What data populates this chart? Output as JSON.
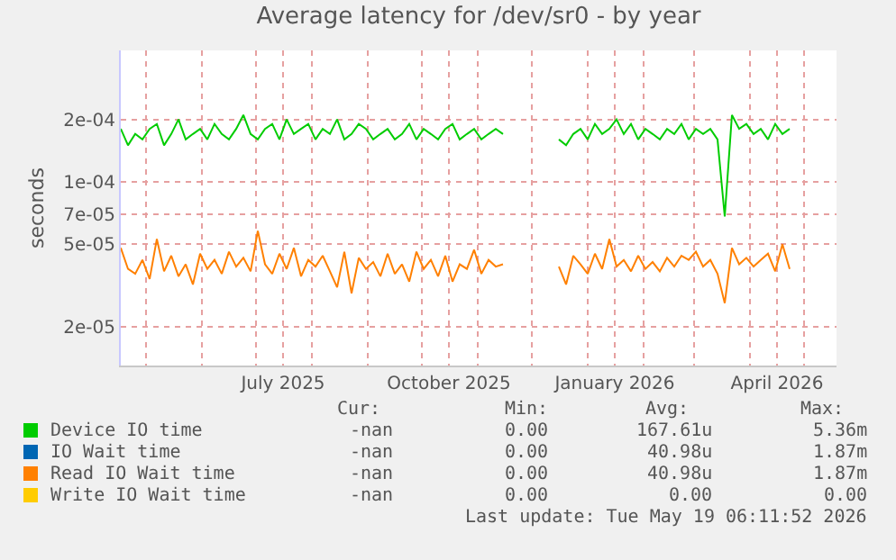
{
  "chart_data": {
    "type": "line",
    "title": "Average latency for /dev/sr0 - by year",
    "ylabel": "seconds",
    "x": [
      "2025-04-17",
      "2025-04-21",
      "2025-04-25",
      "2025-04-29",
      "2025-05-03",
      "2025-05-07",
      "2025-05-11",
      "2025-05-15",
      "2025-05-19",
      "2025-05-23",
      "2025-05-27",
      "2025-05-31",
      "2025-06-04",
      "2025-06-08",
      "2025-06-12",
      "2025-06-16",
      "2025-06-20",
      "2025-06-24",
      "2025-06-28",
      "2025-07-02",
      "2025-07-06",
      "2025-07-10",
      "2025-07-14",
      "2025-07-18",
      "2025-07-22",
      "2025-07-26",
      "2025-07-30",
      "2025-08-03",
      "2025-08-07",
      "2025-08-11",
      "2025-08-15",
      "2025-08-19",
      "2025-08-23",
      "2025-08-27",
      "2025-08-31",
      "2025-09-04",
      "2025-09-08",
      "2025-09-12",
      "2025-09-16",
      "2025-09-20",
      "2025-09-24",
      "2025-09-28",
      "2025-10-02",
      "2025-10-06",
      "2025-10-10",
      "2025-10-14",
      "2025-10-18",
      "2025-10-22",
      "2025-10-26",
      "2025-10-30",
      "2025-11-03",
      "2025-11-07",
      "2025-11-11",
      "2025-11-15",
      "2025-12-01",
      "2025-12-16",
      "2025-12-20",
      "2025-12-24",
      "2025-12-28",
      "2026-01-01",
      "2026-01-05",
      "2026-01-09",
      "2026-01-13",
      "2026-01-17",
      "2026-01-21",
      "2026-01-25",
      "2026-01-29",
      "2026-02-02",
      "2026-02-06",
      "2026-02-10",
      "2026-02-14",
      "2026-02-18",
      "2026-02-22",
      "2026-02-26",
      "2026-03-02",
      "2026-03-06",
      "2026-03-10",
      "2026-03-14",
      "2026-03-18",
      "2026-03-22",
      "2026-03-26",
      "2026-03-30",
      "2026-04-03",
      "2026-04-07",
      "2026-04-11",
      "2026-04-15",
      "2026-04-19",
      "2026-04-23"
    ],
    "series": [
      {
        "name": "Device IO time",
        "color": "#00cc00",
        "values": [
          0.00018,
          0.00015,
          0.00017,
          0.00016,
          0.00018,
          0.00019,
          0.00015,
          0.00017,
          0.0002,
          0.00016,
          0.00017,
          0.00018,
          0.00016,
          0.00019,
          0.00017,
          0.00016,
          0.00018,
          0.00021,
          0.00017,
          0.00016,
          0.00018,
          0.00019,
          0.00016,
          0.0002,
          0.00017,
          0.00018,
          0.00019,
          0.00016,
          0.00018,
          0.00017,
          0.0002,
          0.00016,
          0.00017,
          0.00019,
          0.00018,
          0.00016,
          0.00017,
          0.00018,
          0.00016,
          0.00017,
          0.00019,
          0.00016,
          0.00018,
          0.00017,
          0.00016,
          0.00018,
          0.00019,
          0.00016,
          0.00017,
          0.00018,
          0.00016,
          0.00017,
          0.00018,
          0.00017,
          null,
          0.00016,
          0.00015,
          0.00017,
          0.00018,
          0.00016,
          0.00019,
          0.00017,
          0.00018,
          0.0002,
          0.00017,
          0.00019,
          0.00016,
          0.00018,
          0.00017,
          0.00016,
          0.00018,
          0.00017,
          0.00019,
          0.00016,
          0.00018,
          0.00017,
          0.00018,
          0.00016,
          6.8e-05,
          0.00021,
          0.00018,
          0.00019,
          0.00017,
          0.00018,
          0.00016,
          0.00019,
          0.00017,
          0.00018
        ]
      },
      {
        "name": "IO Wait time",
        "color": "#0066b3",
        "values": [
          null,
          null,
          null,
          null,
          null,
          null,
          null,
          null,
          null,
          null,
          null,
          null,
          null,
          null,
          null,
          null,
          null,
          null,
          null,
          null,
          null,
          null,
          null,
          null,
          null,
          null,
          null,
          null,
          null,
          null,
          null,
          null,
          null,
          null,
          null,
          null,
          null,
          null,
          null,
          null,
          null,
          null,
          null,
          null,
          null,
          null,
          null,
          null,
          null,
          null,
          null,
          null,
          null,
          null,
          null,
          null,
          null,
          null,
          null,
          null,
          null,
          null,
          null,
          null,
          null,
          null,
          null,
          null,
          null,
          null,
          null,
          null,
          null,
          null,
          null,
          null,
          null,
          null,
          null,
          null,
          null,
          null,
          null,
          null,
          null,
          null,
          null,
          null
        ]
      },
      {
        "name": "Read IO Wait time",
        "color": "#ff8000",
        "values": [
          4.8e-05,
          3.8e-05,
          3.6e-05,
          4.2e-05,
          3.4e-05,
          5.3e-05,
          3.7e-05,
          4.4e-05,
          3.5e-05,
          4e-05,
          3.2e-05,
          4.5e-05,
          3.8e-05,
          4.2e-05,
          3.6e-05,
          4.6e-05,
          3.9e-05,
          4.3e-05,
          3.7e-05,
          5.8e-05,
          4e-05,
          3.6e-05,
          4.5e-05,
          3.8e-05,
          4.8e-05,
          3.5e-05,
          4.2e-05,
          3.9e-05,
          4.4e-05,
          3.7e-05,
          3.1e-05,
          4.6e-05,
          2.9e-05,
          4.3e-05,
          3.8e-05,
          4.1e-05,
          3.5e-05,
          4.5e-05,
          3.6e-05,
          4e-05,
          3.3e-05,
          4.6e-05,
          3.8e-05,
          4.2e-05,
          3.5e-05,
          4.4e-05,
          3.3e-05,
          4e-05,
          3.8e-05,
          4.7e-05,
          3.6e-05,
          4.2e-05,
          3.9e-05,
          4e-05,
          null,
          3.9e-05,
          3.2e-05,
          4.4e-05,
          4e-05,
          3.6e-05,
          4.5e-05,
          3.8e-05,
          5.3e-05,
          3.9e-05,
          4.2e-05,
          3.7e-05,
          4.4e-05,
          3.8e-05,
          4.1e-05,
          3.7e-05,
          4.3e-05,
          3.9e-05,
          4.4e-05,
          4.2e-05,
          4.6e-05,
          3.9e-05,
          4.2e-05,
          3.6e-05,
          2.6e-05,
          4.8e-05,
          4e-05,
          4.3e-05,
          3.9e-05,
          4.2e-05,
          4.5e-05,
          3.7e-05,
          5e-05,
          3.8e-05
        ]
      },
      {
        "name": "Write IO Wait time",
        "color": "#ffcc00",
        "values": [
          null,
          null,
          null,
          null,
          null,
          null,
          null,
          null,
          null,
          null,
          null,
          null,
          null,
          null,
          null,
          null,
          null,
          null,
          null,
          null,
          null,
          null,
          null,
          null,
          null,
          null,
          null,
          null,
          null,
          null,
          null,
          null,
          null,
          null,
          null,
          null,
          null,
          null,
          null,
          null,
          null,
          null,
          null,
          null,
          null,
          null,
          null,
          null,
          null,
          null,
          null,
          null,
          null,
          null,
          null,
          null,
          null,
          null,
          null,
          null,
          null,
          null,
          null,
          null,
          null,
          null,
          null,
          null,
          null,
          null,
          null,
          null,
          null,
          null,
          null,
          null,
          null,
          null,
          null,
          null,
          null,
          null,
          null,
          null,
          null,
          null,
          null,
          null
        ]
      }
    ],
    "log": "y",
    "ylim": [
      1.3e-05,
      0.00043
    ],
    "yticks": [
      {
        "value": 2e-05,
        "label": "2e-05"
      },
      {
        "value": 5e-05,
        "label": "5e-05"
      },
      {
        "value": 7e-05,
        "label": "7e-05"
      },
      {
        "value": 0.0001,
        "label": "1e-04"
      },
      {
        "value": 0.0002,
        "label": "2e-04"
      }
    ],
    "xlim": [
      "2025-04-17",
      "2026-05-19"
    ],
    "xticks": [
      {
        "value": "2025-05-01",
        "label": null
      },
      {
        "value": "2025-06-01",
        "label": null
      },
      {
        "value": "2025-07-01",
        "label": null
      },
      {
        "value": "2025-07-16",
        "label": "July 2025"
      },
      {
        "value": "2025-08-01",
        "label": null
      },
      {
        "value": "2025-09-01",
        "label": null
      },
      {
        "value": "2025-10-01",
        "label": null
      },
      {
        "value": "2025-10-16",
        "label": "October 2025"
      },
      {
        "value": "2025-11-01",
        "label": null
      },
      {
        "value": "2025-12-01",
        "label": null
      },
      {
        "value": "2026-01-01",
        "label": null
      },
      {
        "value": "2026-01-16",
        "label": "January 2026"
      },
      {
        "value": "2026-02-01",
        "label": null
      },
      {
        "value": "2026-03-01",
        "label": null
      },
      {
        "value": "2026-04-01",
        "label": null
      },
      {
        "value": "2026-04-16",
        "label": "April 2026"
      },
      {
        "value": "2026-05-01",
        "label": null
      }
    ],
    "grid": true,
    "legend": "bottom",
    "line_style": "solid",
    "marker": "none",
    "annotations": [
      "Cur:",
      "Min:",
      "Avg:",
      "Max:",
      "-nan",
      "0.00",
      "167.61u",
      "5.36m",
      "-nan",
      "0.00",
      "40.98u",
      "1.87m",
      "-nan",
      "0.00",
      "40.98u",
      "1.87m",
      "-nan",
      "0.00",
      "0.00",
      "0.00",
      "Last update: Tue May 19 06:11:52 2026"
    ]
  }
}
